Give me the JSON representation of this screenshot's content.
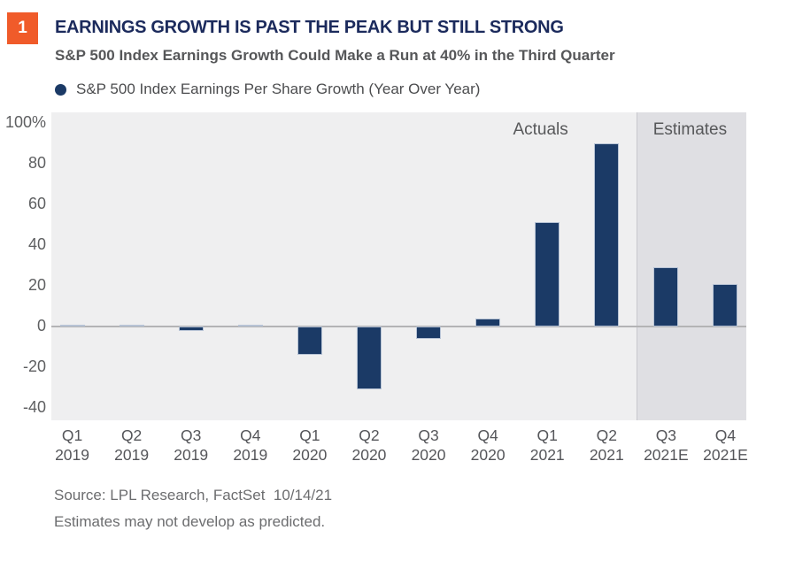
{
  "figure_number": "1",
  "header": {
    "title": "EARNINGS GROWTH IS PAST THE PEAK BUT STILL STRONG",
    "subtitle": "S&P 500 Index Earnings Growth Could Make a Run at 40% in the Third Quarter"
  },
  "legend": {
    "label": "S&P 500 Index Earnings Per Share Growth (Year Over Year)",
    "marker_color": "#1b3a66"
  },
  "chart_data": {
    "type": "bar",
    "title": "EARNINGS GROWTH IS PAST THE PEAK BUT STILL STRONG",
    "subtitle": "S&P 500 Index Earnings Growth Could Make a Run at 40% in the Third Quarter",
    "series_name": "S&P 500 Index Earnings Per Share Growth (Year Over Year)",
    "unit": "%",
    "categories": [
      "Q1 2019",
      "Q2 2019",
      "Q3 2019",
      "Q4 2019",
      "Q1 2020",
      "Q2 2020",
      "Q3 2020",
      "Q4 2020",
      "Q1 2021",
      "Q2 2021",
      "Q3 2021E",
      "Q4 2021E"
    ],
    "values": [
      1,
      1,
      -2,
      1,
      -14,
      -31,
      -6,
      4,
      51,
      90,
      29,
      21
    ],
    "estimate_categories": [
      "Q3 2021E",
      "Q4 2021E"
    ],
    "annotations": [
      {
        "id": "actuals",
        "label": "Actuals"
      },
      {
        "id": "estimates",
        "label": "Estimates"
      }
    ],
    "ylim": [
      -46,
      105
    ],
    "yticks": [
      100,
      80,
      60,
      40,
      20,
      0,
      -20,
      -40
    ],
    "ytick_labels": [
      "100%",
      "80",
      "60",
      "40",
      "20",
      "0",
      "-20",
      "-40"
    ],
    "grid": false,
    "zero_line": true,
    "legend_position": "top-left",
    "bar_color": "#1b3a66",
    "bar_border_color": "#b7c3d5",
    "actuals_background": "#efeff0",
    "estimates_background": "#dfdfe3"
  },
  "footer": {
    "source": "Source: LPL Research, FactSet  10/14/21",
    "disclaimer": "Estimates may not develop as predicted."
  },
  "colors": {
    "accent_orange": "#f05b2a",
    "title_navy": "#1b2a5c",
    "bar_navy": "#1b3a66",
    "text_gray": "#58595b"
  }
}
